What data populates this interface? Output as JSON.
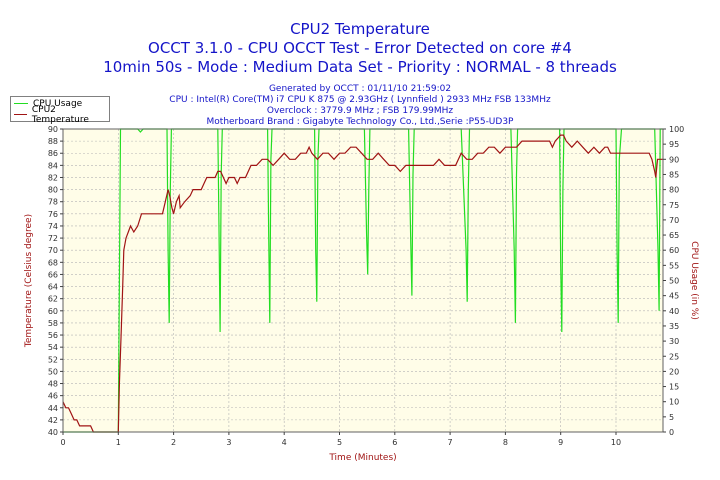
{
  "header": {
    "title": "CPU2 Temperature",
    "subtitle1": "OCCT 3.1.0 - CPU OCCT Test - Error Detected on core #4",
    "subtitle2": "10min 50s - Mode : Medium Data Set - Priority : NORMAL - 8 threads"
  },
  "info": {
    "generated": "Generated by OCCT : 01/11/10 21:59:02",
    "cpu": "CPU : Intel(R) Core(TM) i7 CPU K 875 @ 2.93GHz ( Lynnfield ) 2933 MHz FSB 133MHz",
    "overclock": "Overclock : 3779.9 MHz ; FSB 179.99MHz",
    "motherboard": "Motherboard Brand : Gigabyte Technology Co., Ltd.,Serie :P55-UD3P"
  },
  "colors": {
    "title": "#1414c8",
    "cpu_usage": "#22dd22",
    "temperature": "#a01414",
    "plot_bg": "#fffde8",
    "grid": "#b4b4b4",
    "axis_label": "#a01414"
  },
  "chart_data": {
    "type": "line",
    "xlabel": "Time (Minutes)",
    "ylabel_left": "Temperature (Celsius degree)",
    "ylabel_right": "CPU Usage (in %)",
    "xlim": [
      0,
      10.85
    ],
    "ylim_left": [
      40,
      90
    ],
    "ylim_right": [
      0,
      100
    ],
    "xticks": [
      "0",
      "1",
      "2",
      "3",
      "4",
      "5",
      "6",
      "7",
      "8",
      "9",
      "10"
    ],
    "yticks_left": [
      "40",
      "42",
      "44",
      "46",
      "48",
      "50",
      "52",
      "54",
      "56",
      "58",
      "60",
      "62",
      "64",
      "66",
      "68",
      "70",
      "72",
      "74",
      "76",
      "78",
      "80",
      "82",
      "84",
      "86",
      "88",
      "90"
    ],
    "yticks_right": [
      "0",
      "5",
      "10",
      "15",
      "20",
      "25",
      "30",
      "35",
      "40",
      "45",
      "50",
      "55",
      "60",
      "65",
      "70",
      "75",
      "80",
      "85",
      "90",
      "95",
      "100"
    ],
    "grid": true,
    "legend_position": "top-left",
    "series": [
      {
        "name": "CPU Usage",
        "axis": "right",
        "x": [
          0,
          1.0,
          1.04,
          1.07,
          1.1,
          1.13,
          1.16,
          1.2,
          1.35,
          1.4,
          1.45,
          1.5,
          1.88,
          1.9,
          1.92,
          1.94,
          1.96,
          2.0,
          2.5,
          2.8,
          2.82,
          2.84,
          2.86,
          2.88,
          3.0,
          3.2,
          3.6,
          3.7,
          3.72,
          3.74,
          3.76,
          3.78,
          4.0,
          4.4,
          4.55,
          4.57,
          4.59,
          4.61,
          4.63,
          5.0,
          5.45,
          5.49,
          5.51,
          5.53,
          5.55,
          5.6,
          6.0,
          6.25,
          6.29,
          6.31,
          6.33,
          6.35,
          6.5,
          6.8,
          7.2,
          7.29,
          7.31,
          7.33,
          7.35,
          7.4,
          7.8,
          8.1,
          8.16,
          8.18,
          8.2,
          8.22,
          8.3,
          8.8,
          8.98,
          9.0,
          9.02,
          9.04,
          9.06,
          9.2,
          9.9,
          10.0,
          10.02,
          10.04,
          10.06,
          10.1,
          10.7,
          10.76,
          10.78,
          10.8,
          10.85
        ],
        "values": [
          0,
          0,
          100,
          100,
          100,
          100,
          100,
          100,
          100,
          99,
          100,
          100,
          100,
          60,
          36,
          80,
          100,
          100,
          100,
          100,
          70,
          33,
          85,
          100,
          100,
          100,
          100,
          100,
          65,
          36,
          90,
          100,
          100,
          100,
          100,
          60,
          43,
          90,
          100,
          100,
          100,
          65,
          52,
          80,
          100,
          100,
          100,
          100,
          62,
          45,
          85,
          100,
          100,
          100,
          100,
          60,
          43,
          80,
          100,
          100,
          100,
          100,
          60,
          36,
          85,
          100,
          100,
          100,
          100,
          55,
          33,
          80,
          100,
          100,
          100,
          100,
          60,
          36,
          90,
          100,
          100,
          60,
          40,
          100,
          100
        ]
      },
      {
        "name": "CPU2 Temperature",
        "axis": "left",
        "x": [
          0,
          0.05,
          0.1,
          0.15,
          0.2,
          0.25,
          0.3,
          0.35,
          0.5,
          0.55,
          0.7,
          0.9,
          1.0,
          1.02,
          1.05,
          1.08,
          1.1,
          1.14,
          1.18,
          1.22,
          1.28,
          1.35,
          1.42,
          1.5,
          1.8,
          1.85,
          1.9,
          1.93,
          1.97,
          2.0,
          2.05,
          2.1,
          2.12,
          2.2,
          2.3,
          2.35,
          2.5,
          2.55,
          2.6,
          2.75,
          2.8,
          2.85,
          2.9,
          2.95,
          3.0,
          3.1,
          3.15,
          3.2,
          3.3,
          3.4,
          3.5,
          3.6,
          3.7,
          3.8,
          3.9,
          4.0,
          4.1,
          4.2,
          4.3,
          4.4,
          4.45,
          4.5,
          4.6,
          4.7,
          4.8,
          4.9,
          5.0,
          5.1,
          5.2,
          5.3,
          5.4,
          5.5,
          5.6,
          5.7,
          5.8,
          5.9,
          6.0,
          6.1,
          6.2,
          6.3,
          6.4,
          6.5,
          6.6,
          6.7,
          6.8,
          6.9,
          7.0,
          7.1,
          7.2,
          7.3,
          7.4,
          7.5,
          7.6,
          7.7,
          7.8,
          7.9,
          8.0,
          8.1,
          8.2,
          8.3,
          8.4,
          8.5,
          8.6,
          8.7,
          8.8,
          8.85,
          8.9,
          9.0,
          9.05,
          9.1,
          9.2,
          9.3,
          9.4,
          9.5,
          9.6,
          9.7,
          9.8,
          9.85,
          9.9,
          10.0,
          10.1,
          10.2,
          10.3,
          10.4,
          10.5,
          10.6,
          10.65,
          10.7,
          10.72,
          10.75,
          10.8,
          10.85
        ],
        "values": [
          45,
          44,
          44,
          43,
          42,
          42,
          41,
          41,
          41,
          40,
          40,
          40,
          40,
          48,
          56,
          64,
          70,
          72,
          73,
          74,
          73,
          74,
          76,
          76,
          76,
          78,
          80,
          79,
          77,
          76,
          78,
          79,
          77,
          78,
          79,
          80,
          80,
          81,
          82,
          82,
          83,
          83,
          82,
          81,
          82,
          82,
          81,
          82,
          82,
          84,
          84,
          85,
          85,
          84,
          85,
          86,
          85,
          85,
          86,
          86,
          87,
          86,
          85,
          86,
          86,
          85,
          86,
          86,
          87,
          87,
          86,
          85,
          85,
          86,
          85,
          84,
          84,
          83,
          84,
          84,
          84,
          84,
          84,
          84,
          85,
          84,
          84,
          84,
          86,
          85,
          85,
          86,
          86,
          87,
          87,
          86,
          87,
          87,
          87,
          88,
          88,
          88,
          88,
          88,
          88,
          87,
          88,
          89,
          89,
          88,
          87,
          88,
          87,
          86,
          87,
          86,
          87,
          87,
          86,
          86,
          86,
          86,
          86,
          86,
          86,
          86,
          85,
          83,
          82,
          85,
          85,
          85
        ]
      }
    ]
  }
}
